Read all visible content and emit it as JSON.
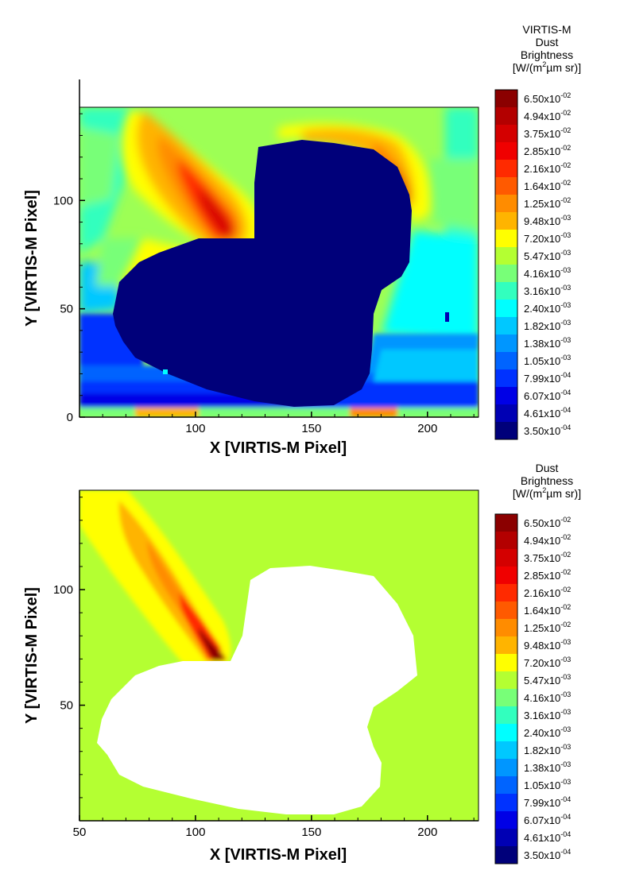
{
  "chart_data": [
    {
      "type": "heatmap",
      "title_lines": [
        "VIRTIS-M",
        "Dust",
        "Brightness",
        "[W/(m",
        "2",
        "µm sr)]"
      ],
      "xlabel": "X [VIRTIS-M Pixel]",
      "ylabel": "Y [VIRTIS-M Pixel]",
      "xlim": [
        50,
        222
      ],
      "ylim": [
        0,
        143
      ],
      "xticks": [
        "100",
        "150",
        "200"
      ],
      "yticks": [
        "0",
        "50",
        "100"
      ],
      "colorbar_levels": [
        "6.50x10",
        "4.94x10",
        "3.75x10",
        "2.85x10",
        "2.16x10",
        "1.64x10",
        "1.25x10",
        "9.48x10",
        "7.20x10",
        "5.47x10",
        "4.16x10",
        "3.16x10",
        "2.40x10",
        "1.82x10",
        "1.38x10",
        "1.05x10",
        "7.99x10",
        "6.07x10",
        "4.61x10",
        "3.50x10"
      ],
      "colorbar_exponents": [
        "-02",
        "-02",
        "-02",
        "-02",
        "-02",
        "-02",
        "-02",
        "-03",
        "-03",
        "-03",
        "-03",
        "-03",
        "-03",
        "-03",
        "-03",
        "-03",
        "-04",
        "-04",
        "-04",
        "-04"
      ],
      "colorbar_values": [
        0.065,
        0.0494,
        0.0375,
        0.0285,
        0.0216,
        0.0164,
        0.0125,
        0.00948,
        0.0072,
        0.00547,
        0.00416,
        0.00316,
        0.0024,
        0.00182,
        0.00138,
        0.00105,
        0.000799,
        0.000607,
        0.000461,
        0.00035
      ],
      "colorbar_colors": [
        "#8b0000",
        "#b30000",
        "#d40000",
        "#f00000",
        "#ff2a00",
        "#ff5a00",
        "#ff8c00",
        "#ffb400",
        "#ffff00",
        "#b4ff32",
        "#78ff78",
        "#32ffbe",
        "#00ffff",
        "#00c8ff",
        "#0096ff",
        "#0064ff",
        "#0032ff",
        "#0000e6",
        "#0000b4",
        "#00007a"
      ]
    },
    {
      "type": "heatmap",
      "title_lines": [
        "Dust",
        "Brightness",
        "[W/(m",
        "2",
        "µm sr)]"
      ],
      "xlabel": "X [VIRTIS-M Pixel]",
      "ylabel": "Y [VIRTIS-M Pixel]",
      "xlim": [
        50,
        222
      ],
      "ylim": [
        0,
        143
      ],
      "xticks": [
        "50",
        "100",
        "150",
        "200"
      ],
      "yticks": [
        "50",
        "100"
      ],
      "colorbar_levels": [
        "6.50x10",
        "4.94x10",
        "3.75x10",
        "2.85x10",
        "2.16x10",
        "1.64x10",
        "1.25x10",
        "9.48x10",
        "7.20x10",
        "5.47x10",
        "4.16x10",
        "3.16x10",
        "2.40x10",
        "1.82x10",
        "1.38x10",
        "1.05x10",
        "7.99x10",
        "6.07x10",
        "4.61x10",
        "3.50x10"
      ],
      "colorbar_exponents": [
        "-02",
        "-02",
        "-02",
        "-02",
        "-02",
        "-02",
        "-02",
        "-03",
        "-03",
        "-03",
        "-03",
        "-03",
        "-03",
        "-03",
        "-03",
        "-03",
        "-04",
        "-04",
        "-04",
        "-04"
      ],
      "colorbar_values": [
        0.065,
        0.0494,
        0.0375,
        0.0285,
        0.0216,
        0.0164,
        0.0125,
        0.00948,
        0.0072,
        0.00547,
        0.00416,
        0.00316,
        0.0024,
        0.00182,
        0.00138,
        0.00105,
        0.000799,
        0.000607,
        0.000461,
        0.00035
      ],
      "colorbar_colors": [
        "#8b0000",
        "#b30000",
        "#d40000",
        "#f00000",
        "#ff2a00",
        "#ff5a00",
        "#ff8c00",
        "#ffb400",
        "#ffff00",
        "#b4ff32",
        "#78ff78",
        "#32ffbe",
        "#00ffff",
        "#00c8ff",
        "#0096ff",
        "#0064ff",
        "#0032ff",
        "#0000e6",
        "#0000b4",
        "#00007a"
      ]
    }
  ]
}
